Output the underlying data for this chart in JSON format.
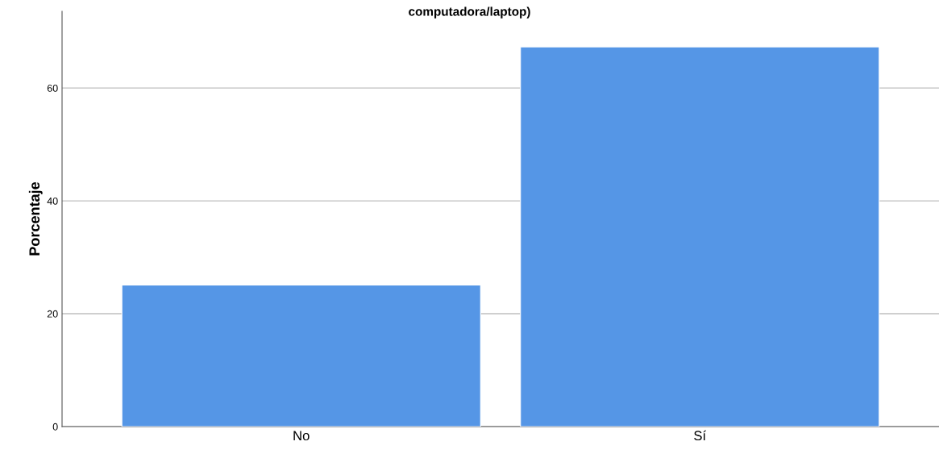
{
  "chart_data": {
    "type": "bar",
    "title": "computadora/laptop)",
    "ylabel": "Porcentaje",
    "categories": [
      "No",
      "Sí"
    ],
    "values": [
      25.1,
      67.3
    ],
    "color": "#5596e6",
    "ylim": [
      0,
      73.6
    ],
    "yticks": [
      0,
      20,
      40,
      60
    ],
    "grid": "y"
  }
}
